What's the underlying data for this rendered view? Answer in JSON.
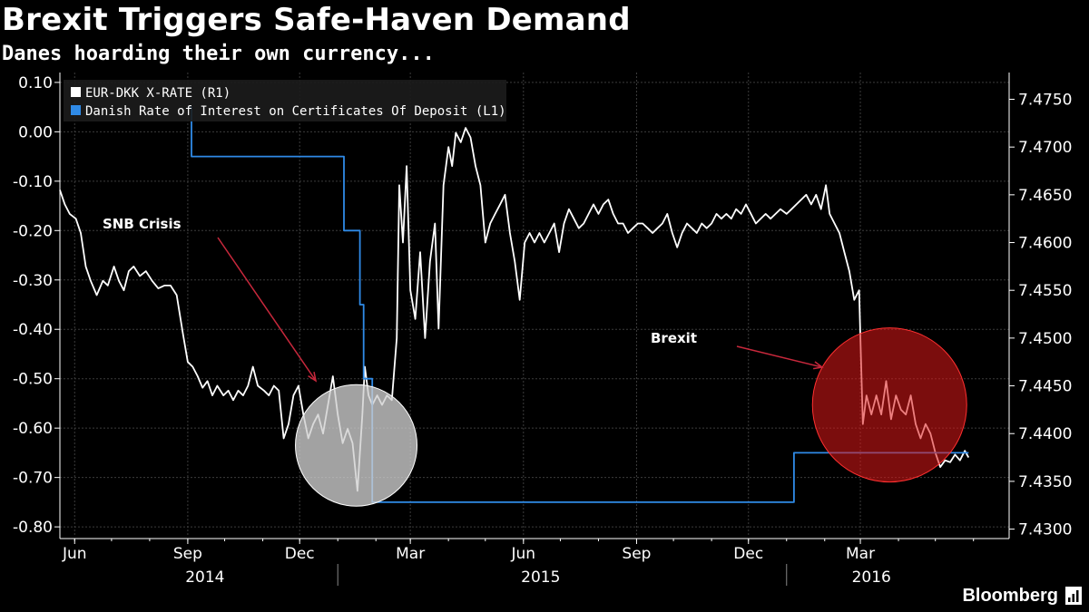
{
  "header": {
    "title": "Brexit Triggers Safe-Haven Demand",
    "subtitle": "Danes hoarding their own currency..."
  },
  "source": "Bloomberg",
  "colors": {
    "background": "#000000",
    "eur_dkk": "#ffffff",
    "cd_rate": "#2f8ae6",
    "annotation_arrow": "#c8283c",
    "brexit_circle": "#e01818",
    "snb_circle": "#d0d0d0"
  },
  "chart_data": {
    "type": "line",
    "x_tick_labels": [
      {
        "label": "Jun",
        "date": "2014-06-01"
      },
      {
        "label": "Sep",
        "date": "2014-09-01"
      },
      {
        "label": "Dec",
        "date": "2014-12-01"
      },
      {
        "label": "Mar",
        "date": "2015-03-01"
      },
      {
        "label": "Jun",
        "date": "2015-06-01"
      },
      {
        "label": "Sep",
        "date": "2015-09-01"
      },
      {
        "label": "Dec",
        "date": "2015-12-01"
      },
      {
        "label": "Mar",
        "date": "2016-03-01"
      }
    ],
    "year_labels": [
      {
        "label": "2014",
        "date": "2014-09-15"
      },
      {
        "label": "2015",
        "date": "2015-06-15"
      },
      {
        "label": "2016",
        "date": "2016-03-10"
      }
    ],
    "year_separators": [
      "2015-01-01",
      "2016-01-01"
    ],
    "xlim": [
      "2014-05-20",
      "2016-06-30"
    ],
    "left_axis": {
      "ylim": [
        -0.82,
        0.12
      ],
      "ticks": [
        0.1,
        0.0,
        -0.1,
        -0.2,
        -0.3,
        -0.4,
        -0.5,
        -0.6,
        -0.7,
        -0.8
      ],
      "tick_labels": [
        "0.10",
        "0.00",
        "-0.10",
        "-0.20",
        "-0.30",
        "-0.40",
        "-0.50",
        "-0.60",
        "-0.70",
        "-0.80"
      ]
    },
    "right_axis": {
      "ylim": [
        7.4292,
        7.4778
      ],
      "ticks": [
        7.475,
        7.47,
        7.465,
        7.46,
        7.455,
        7.45,
        7.445,
        7.44,
        7.435,
        7.43
      ],
      "tick_labels": [
        "7.4750",
        "7.4700",
        "7.4650",
        "7.4600",
        "7.4550",
        "7.4500",
        "7.4450",
        "7.4400",
        "7.4350",
        "7.4300"
      ]
    },
    "grid": true,
    "legend": {
      "placement": "top-left",
      "entries": [
        "EUR-DKK X-RATE (R1)",
        "Danish Rate of Interest on Certificates Of Deposit (L1)"
      ]
    },
    "series": [
      {
        "name": "EUR-DKK X-RATE (R1)",
        "axis": "right",
        "points": [
          [
            "2014-05-20",
            7.4655
          ],
          [
            "2014-05-24",
            7.464
          ],
          [
            "2014-05-28",
            7.463
          ],
          [
            "2014-06-02",
            7.4625
          ],
          [
            "2014-06-06",
            7.461
          ],
          [
            "2014-06-10",
            7.4575
          ],
          [
            "2014-06-14",
            7.456
          ],
          [
            "2014-06-19",
            7.4545
          ],
          [
            "2014-06-24",
            7.456
          ],
          [
            "2014-06-28",
            7.4555
          ],
          [
            "2014-07-03",
            7.4575
          ],
          [
            "2014-07-07",
            7.456
          ],
          [
            "2014-07-11",
            7.455
          ],
          [
            "2014-07-15",
            7.457
          ],
          [
            "2014-07-19",
            7.4575
          ],
          [
            "2014-07-24",
            7.4565
          ],
          [
            "2014-07-29",
            7.457
          ],
          [
            "2014-08-03",
            7.456
          ],
          [
            "2014-08-08",
            7.4552
          ],
          [
            "2014-08-13",
            7.4555
          ],
          [
            "2014-08-18",
            7.4555
          ],
          [
            "2014-08-23",
            7.4545
          ],
          [
            "2014-08-28",
            7.4505
          ],
          [
            "2014-09-01",
            7.4475
          ],
          [
            "2014-09-05",
            7.447
          ],
          [
            "2014-09-09",
            7.446
          ],
          [
            "2014-09-13",
            7.4448
          ],
          [
            "2014-09-17",
            7.4455
          ],
          [
            "2014-09-21",
            7.444
          ],
          [
            "2014-09-25",
            7.445
          ],
          [
            "2014-09-30",
            7.444
          ],
          [
            "2014-10-04",
            7.4445
          ],
          [
            "2014-10-08",
            7.4435
          ],
          [
            "2014-10-12",
            7.4445
          ],
          [
            "2014-10-16",
            7.444
          ],
          [
            "2014-10-20",
            7.445
          ],
          [
            "2014-10-24",
            7.447
          ],
          [
            "2014-10-28",
            7.445
          ],
          [
            "2014-11-02",
            7.4445
          ],
          [
            "2014-11-06",
            7.444
          ],
          [
            "2014-11-10",
            7.445
          ],
          [
            "2014-11-14",
            7.4445
          ],
          [
            "2014-11-18",
            7.4395
          ],
          [
            "2014-11-22",
            7.441
          ],
          [
            "2014-11-26",
            7.444
          ],
          [
            "2014-11-30",
            7.445
          ],
          [
            "2014-12-04",
            7.442
          ],
          [
            "2014-12-08",
            7.4395
          ],
          [
            "2014-12-12",
            7.441
          ],
          [
            "2014-12-16",
            7.442
          ],
          [
            "2014-12-20",
            7.44
          ],
          [
            "2014-12-24",
            7.443
          ],
          [
            "2014-12-28",
            7.446
          ],
          [
            "2015-01-01",
            7.442
          ],
          [
            "2015-01-05",
            7.439
          ],
          [
            "2015-01-09",
            7.4405
          ],
          [
            "2015-01-13",
            7.439
          ],
          [
            "2015-01-17",
            7.434
          ],
          [
            "2015-01-21",
            7.442
          ],
          [
            "2015-01-23",
            7.447
          ],
          [
            "2015-01-26",
            7.444
          ],
          [
            "2015-01-29",
            7.443
          ],
          [
            "2015-02-02",
            7.444
          ],
          [
            "2015-02-06",
            7.443
          ],
          [
            "2015-02-10",
            7.444
          ],
          [
            "2015-02-14",
            7.4435
          ],
          [
            "2015-02-18",
            7.45
          ],
          [
            "2015-02-20",
            7.466
          ],
          [
            "2015-02-23",
            7.46
          ],
          [
            "2015-02-26",
            7.468
          ],
          [
            "2015-03-01",
            7.455
          ],
          [
            "2015-03-05",
            7.452
          ],
          [
            "2015-03-09",
            7.459
          ],
          [
            "2015-03-13",
            7.45
          ],
          [
            "2015-03-17",
            7.458
          ],
          [
            "2015-03-21",
            7.462
          ],
          [
            "2015-03-24",
            7.451
          ],
          [
            "2015-03-28",
            7.466
          ],
          [
            "2015-04-01",
            7.47
          ],
          [
            "2015-04-04",
            7.468
          ],
          [
            "2015-04-07",
            7.4715
          ],
          [
            "2015-04-11",
            7.4705
          ],
          [
            "2015-04-15",
            7.472
          ],
          [
            "2015-04-19",
            7.471
          ],
          [
            "2015-04-23",
            7.468
          ],
          [
            "2015-04-27",
            7.466
          ],
          [
            "2015-05-01",
            7.46
          ],
          [
            "2015-05-05",
            7.462
          ],
          [
            "2015-05-09",
            7.463
          ],
          [
            "2015-05-13",
            7.464
          ],
          [
            "2015-05-17",
            7.465
          ],
          [
            "2015-05-21",
            7.461
          ],
          [
            "2015-05-25",
            7.458
          ],
          [
            "2015-05-29",
            7.454
          ],
          [
            "2015-06-02",
            7.46
          ],
          [
            "2015-06-06",
            7.461
          ],
          [
            "2015-06-10",
            7.46
          ],
          [
            "2015-06-14",
            7.461
          ],
          [
            "2015-06-18",
            7.46
          ],
          [
            "2015-06-22",
            7.461
          ],
          [
            "2015-06-26",
            7.462
          ],
          [
            "2015-06-30",
            7.459
          ],
          [
            "2015-07-04",
            7.462
          ],
          [
            "2015-07-08",
            7.4635
          ],
          [
            "2015-07-12",
            7.4625
          ],
          [
            "2015-07-16",
            7.4615
          ],
          [
            "2015-07-20",
            7.462
          ],
          [
            "2015-07-24",
            7.463
          ],
          [
            "2015-07-28",
            7.464
          ],
          [
            "2015-08-01",
            7.463
          ],
          [
            "2015-08-05",
            7.464
          ],
          [
            "2015-08-09",
            7.4645
          ],
          [
            "2015-08-13",
            7.463
          ],
          [
            "2015-08-17",
            7.462
          ],
          [
            "2015-08-21",
            7.462
          ],
          [
            "2015-08-25",
            7.461
          ],
          [
            "2015-08-29",
            7.4615
          ],
          [
            "2015-09-02",
            7.462
          ],
          [
            "2015-09-06",
            7.462
          ],
          [
            "2015-09-10",
            7.4615
          ],
          [
            "2015-09-14",
            7.461
          ],
          [
            "2015-09-18",
            7.4615
          ],
          [
            "2015-09-22",
            7.462
          ],
          [
            "2015-09-26",
            7.463
          ],
          [
            "2015-09-30",
            7.461
          ],
          [
            "2015-10-04",
            7.4595
          ],
          [
            "2015-10-08",
            7.461
          ],
          [
            "2015-10-12",
            7.462
          ],
          [
            "2015-10-16",
            7.4615
          ],
          [
            "2015-10-20",
            7.461
          ],
          [
            "2015-10-24",
            7.462
          ],
          [
            "2015-10-28",
            7.4615
          ],
          [
            "2015-11-01",
            7.462
          ],
          [
            "2015-11-05",
            7.463
          ],
          [
            "2015-11-09",
            7.4625
          ],
          [
            "2015-11-13",
            7.463
          ],
          [
            "2015-11-17",
            7.4625
          ],
          [
            "2015-11-21",
            7.4635
          ],
          [
            "2015-11-25",
            7.463
          ],
          [
            "2015-11-29",
            7.464
          ],
          [
            "2015-12-03",
            7.463
          ],
          [
            "2015-12-07",
            7.462
          ],
          [
            "2015-12-11",
            7.4625
          ],
          [
            "2015-12-15",
            7.463
          ],
          [
            "2015-12-19",
            7.4625
          ],
          [
            "2015-12-23",
            7.463
          ],
          [
            "2015-12-27",
            7.4635
          ],
          [
            "2016-01-01",
            7.463
          ],
          [
            "2016-01-05",
            7.4635
          ],
          [
            "2016-01-09",
            7.464
          ],
          [
            "2016-01-13",
            7.4645
          ],
          [
            "2016-01-17",
            7.465
          ],
          [
            "2016-01-21",
            7.464
          ],
          [
            "2016-01-25",
            7.465
          ],
          [
            "2016-01-29",
            7.4635
          ],
          [
            "2016-02-02",
            7.466
          ],
          [
            "2016-02-05",
            7.463
          ],
          [
            "2016-02-09",
            7.462
          ],
          [
            "2016-02-13",
            7.461
          ],
          [
            "2016-02-17",
            7.459
          ],
          [
            "2016-02-21",
            7.457
          ],
          [
            "2016-02-25",
            7.454
          ],
          [
            "2016-02-29",
            7.455
          ],
          [
            "2016-03-01",
            7.45
          ],
          [
            "2016-03-03",
            7.441
          ],
          [
            "2016-03-06",
            7.444
          ],
          [
            "2016-03-10",
            7.442
          ],
          [
            "2016-03-14",
            7.444
          ],
          [
            "2016-03-18",
            7.442
          ],
          [
            "2016-03-22",
            7.4455
          ],
          [
            "2016-03-26",
            7.4415
          ],
          [
            "2016-03-30",
            7.444
          ],
          [
            "2016-04-03",
            7.4425
          ],
          [
            "2016-04-07",
            7.442
          ],
          [
            "2016-04-11",
            7.444
          ],
          [
            "2016-04-15",
            7.441
          ],
          [
            "2016-04-19",
            7.4395
          ],
          [
            "2016-04-23",
            7.441
          ],
          [
            "2016-04-27",
            7.44
          ],
          [
            "2016-05-01",
            7.438
          ],
          [
            "2016-05-05",
            7.4365
          ],
          [
            "2016-05-09",
            7.4372
          ],
          [
            "2016-05-13",
            7.437
          ],
          [
            "2016-05-17",
            7.4378
          ],
          [
            "2016-05-21",
            7.4372
          ],
          [
            "2016-05-25",
            7.4382
          ],
          [
            "2016-05-28",
            7.4375
          ]
        ]
      },
      {
        "name": "Danish Rate of Interest on Certificates Of Deposit (L1)",
        "axis": "left",
        "points": [
          [
            "2014-09-01",
            0.05
          ],
          [
            "2014-09-04",
            0.05
          ],
          [
            "2014-09-04",
            -0.05
          ],
          [
            "2015-01-06",
            -0.05
          ],
          [
            "2015-01-06",
            -0.2
          ],
          [
            "2015-01-19",
            -0.2
          ],
          [
            "2015-01-19",
            -0.35
          ],
          [
            "2015-01-22",
            -0.35
          ],
          [
            "2015-01-22",
            -0.5
          ],
          [
            "2015-01-29",
            -0.5
          ],
          [
            "2015-01-29",
            -0.75
          ],
          [
            "2016-01-07",
            -0.75
          ],
          [
            "2016-01-07",
            -0.65
          ],
          [
            "2016-05-28",
            -0.65
          ]
        ]
      }
    ],
    "annotations": [
      {
        "text": "SNB Crisis",
        "target_date": "2015-01-16",
        "target_value": 7.44
      },
      {
        "text": "Brexit",
        "target_date": "2016-03-10",
        "target_value": 7.443
      }
    ]
  }
}
